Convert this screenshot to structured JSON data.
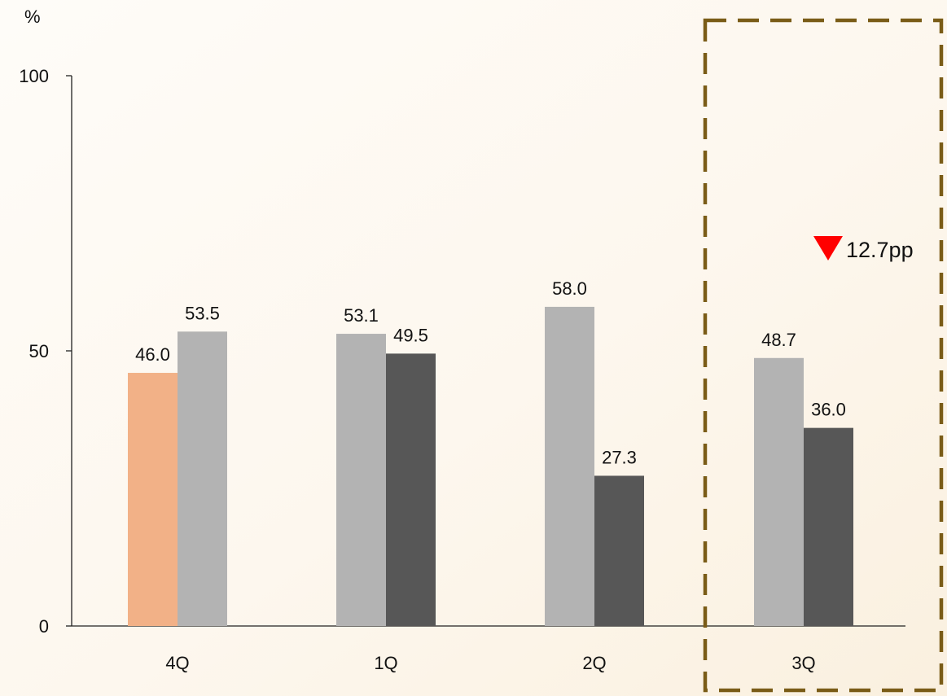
{
  "chart_data": {
    "type": "bar",
    "unit_label": "%",
    "categories": [
      "4Q",
      "1Q",
      "2Q",
      "3Q"
    ],
    "ylim": [
      0,
      100
    ],
    "yticks": [
      0,
      50,
      100
    ],
    "grid": false,
    "bars": [
      {
        "category": "4Q",
        "slot": 0,
        "value": 46.0,
        "label": "46.0",
        "color": "#f2b187"
      },
      {
        "category": "4Q",
        "slot": 1,
        "value": 53.5,
        "label": "53.5",
        "color": "#b3b3b3"
      },
      {
        "category": "1Q",
        "slot": 0,
        "value": 53.1,
        "label": "53.1",
        "color": "#b3b3b3"
      },
      {
        "category": "1Q",
        "slot": 1,
        "value": 49.5,
        "label": "49.5",
        "color": "#575757"
      },
      {
        "category": "2Q",
        "slot": 0,
        "value": 58.0,
        "label": "58.0",
        "color": "#b3b3b3"
      },
      {
        "category": "2Q",
        "slot": 1,
        "value": 27.3,
        "label": "27.3",
        "color": "#575757"
      },
      {
        "category": "3Q",
        "slot": 0,
        "value": 48.7,
        "label": "48.7",
        "color": "#b3b3b3"
      },
      {
        "category": "3Q",
        "slot": 1,
        "value": 36.0,
        "label": "36.0",
        "color": "#575757"
      }
    ],
    "highlight": {
      "category": "3Q",
      "annotation": "12.7pp",
      "direction": "down",
      "marker_color": "#ff0000",
      "box_color": "#7a5c17"
    }
  }
}
